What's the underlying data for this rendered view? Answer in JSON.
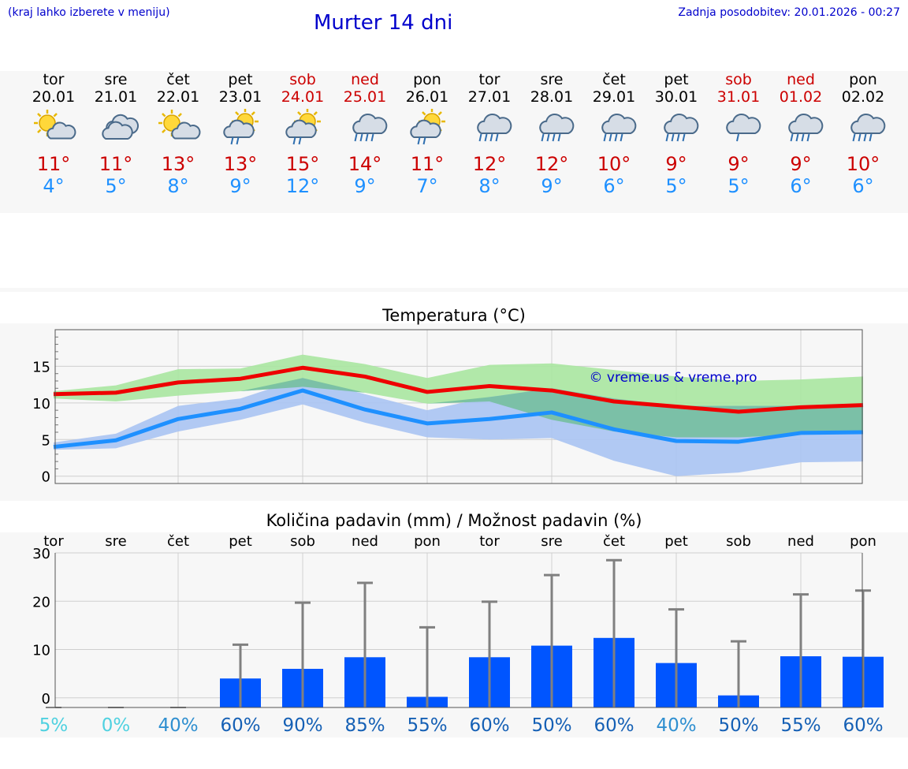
{
  "header": {
    "note": "(kraj lahko izberete v meniju)",
    "title": "Murter 14 dni",
    "updated": "Zadnja posodobitev: 20.01.2026 - 00:27"
  },
  "days": [
    {
      "weekday": "tor",
      "date": "20.01",
      "weekend": false,
      "icon": "sun-cloud-icon",
      "tmax": "11°",
      "tmin": "4°"
    },
    {
      "weekday": "sre",
      "date": "21.01",
      "weekend": false,
      "icon": "cloudy-icon",
      "tmax": "11°",
      "tmin": "5°"
    },
    {
      "weekday": "čet",
      "date": "22.01",
      "weekend": false,
      "icon": "sun-cloud-icon",
      "tmax": "13°",
      "tmin": "8°"
    },
    {
      "weekday": "pet",
      "date": "23.01",
      "weekend": false,
      "icon": "sun-cloud-rain-icon",
      "tmax": "13°",
      "tmin": "9°"
    },
    {
      "weekday": "sob",
      "date": "24.01",
      "weekend": true,
      "icon": "sun-cloud-rain-icon",
      "tmax": "15°",
      "tmin": "12°"
    },
    {
      "weekday": "ned",
      "date": "25.01",
      "weekend": true,
      "icon": "cloud-rain-icon",
      "tmax": "14°",
      "tmin": "9°"
    },
    {
      "weekday": "pon",
      "date": "26.01",
      "weekend": false,
      "icon": "sun-cloud-rain-icon",
      "tmax": "11°",
      "tmin": "7°"
    },
    {
      "weekday": "tor",
      "date": "27.01",
      "weekend": false,
      "icon": "cloud-rain-icon",
      "tmax": "12°",
      "tmin": "8°"
    },
    {
      "weekday": "sre",
      "date": "28.01",
      "weekend": false,
      "icon": "cloud-rain-icon",
      "tmax": "12°",
      "tmin": "9°"
    },
    {
      "weekday": "čet",
      "date": "29.01",
      "weekend": false,
      "icon": "cloud-rain-icon",
      "tmax": "10°",
      "tmin": "6°"
    },
    {
      "weekday": "pet",
      "date": "30.01",
      "weekend": false,
      "icon": "cloud-rain-icon",
      "tmax": "9°",
      "tmin": "5°"
    },
    {
      "weekday": "sob",
      "date": "31.01",
      "weekend": true,
      "icon": "cloud-light-rain-icon",
      "tmax": "9°",
      "tmin": "5°"
    },
    {
      "weekday": "ned",
      "date": "01.02",
      "weekend": true,
      "icon": "cloud-rain-icon",
      "tmax": "9°",
      "tmin": "6°"
    },
    {
      "weekday": "pon",
      "date": "02.02",
      "weekend": false,
      "icon": "cloud-rain-icon",
      "tmax": "10°",
      "tmin": "6°"
    }
  ],
  "colors": {
    "max_line": "#ee0000",
    "min_line": "#1e90ff",
    "max_band": "#a8e6a0",
    "min_band": "#a9c3f2",
    "overlap_band": "#76bfa0",
    "bar": "#0055ff",
    "whisker": "#808080",
    "watermark": "#0000cc"
  },
  "chart_data": [
    {
      "type": "line",
      "title": "Temperatura (°C)",
      "x": [
        0,
        1,
        2,
        3,
        4,
        5,
        6,
        7,
        8,
        9,
        10,
        11,
        12,
        13
      ],
      "ylim": [
        -1,
        20
      ],
      "yticks": [
        0,
        5,
        10,
        15
      ],
      "grid": true,
      "watermark": "© vreme.us & vreme.pro",
      "series": [
        {
          "name": "max",
          "values": [
            11.2,
            11.4,
            12.8,
            13.3,
            14.8,
            13.6,
            11.5,
            12.3,
            11.7,
            10.2,
            9.5,
            8.8,
            9.4,
            9.7
          ]
        },
        {
          "name": "min",
          "values": [
            4.0,
            4.9,
            7.8,
            9.2,
            11.7,
            9.1,
            7.2,
            7.8,
            8.7,
            6.4,
            4.8,
            4.7,
            5.9,
            6.0
          ]
        },
        {
          "name": "max_band_low",
          "values": [
            10.6,
            10.2,
            11.0,
            11.6,
            12.2,
            11.4,
            9.9,
            10.2,
            7.7,
            6.1,
            5.3,
            5.3,
            5.7,
            5.9
          ]
        },
        {
          "name": "max_band_high",
          "values": [
            11.6,
            12.4,
            14.6,
            14.7,
            16.6,
            15.3,
            13.4,
            15.2,
            15.4,
            14.5,
            13.6,
            13.0,
            13.2,
            13.6
          ]
        },
        {
          "name": "min_band_low",
          "values": [
            3.6,
            3.8,
            6.1,
            7.7,
            9.8,
            7.3,
            5.3,
            5.0,
            5.2,
            2.1,
            0.0,
            0.5,
            1.9,
            2.0
          ]
        },
        {
          "name": "min_band_high",
          "values": [
            4.6,
            5.8,
            9.6,
            10.6,
            13.4,
            11.2,
            9.0,
            10.8,
            12.0,
            10.6,
            9.6,
            9.6,
            9.6,
            9.7
          ]
        }
      ]
    },
    {
      "type": "bar",
      "title": "Količina padavin (mm) / Možnost padavin (%)",
      "categories": [
        "tor",
        "sre",
        "čet",
        "pet",
        "sob",
        "ned",
        "pon",
        "tor",
        "sre",
        "čet",
        "pet",
        "sob",
        "ned",
        "pon"
      ],
      "ylim": [
        -2,
        30
      ],
      "yticks": [
        0,
        10,
        20,
        30
      ],
      "grid": true,
      "series": [
        {
          "name": "precip_mm",
          "values": [
            0,
            0,
            0,
            4.0,
            6.0,
            8.4,
            0.2,
            8.4,
            10.8,
            12.4,
            7.2,
            0.5,
            8.6,
            8.5
          ]
        },
        {
          "name": "precip_max_mm",
          "values": [
            0,
            0,
            0,
            11.0,
            19.7,
            23.8,
            14.6,
            19.9,
            25.4,
            28.5,
            18.3,
            11.7,
            21.4,
            22.2
          ]
        }
      ],
      "probabilities": [
        "5%",
        "0%",
        "40%",
        "60%",
        "90%",
        "85%",
        "55%",
        "60%",
        "50%",
        "60%",
        "40%",
        "50%",
        "55%",
        "60%"
      ],
      "probability_colors": [
        "#4fd1e0",
        "#4fd1e0",
        "#2f8fd0",
        "#1560b5",
        "#1560b5",
        "#1560b5",
        "#1560b5",
        "#1560b5",
        "#1560b5",
        "#1560b5",
        "#2f8fd0",
        "#1560b5",
        "#1560b5",
        "#1560b5"
      ]
    }
  ]
}
